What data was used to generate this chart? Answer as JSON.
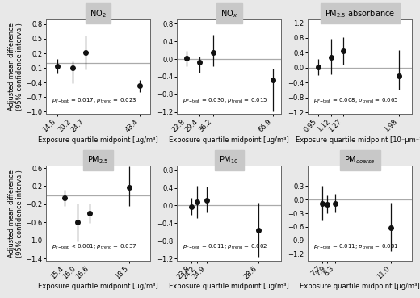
{
  "subplots": [
    {
      "title": "NO$_2$",
      "pF": "0.017",
      "ptrend": "0.023",
      "pF_lt": false,
      "x": [
        14.8,
        20.2,
        24.7,
        43.4
      ],
      "y": [
        -0.07,
        -0.1,
        0.21,
        -0.47
      ],
      "yerr_low": [
        0.15,
        0.32,
        0.35,
        0.12
      ],
      "yerr_high": [
        0.15,
        0.13,
        0.35,
        0.12
      ],
      "ylim": [
        -1.05,
        0.9
      ],
      "yticks": [
        -1.0,
        -0.7,
        -0.4,
        -0.1,
        0.2,
        0.5,
        0.8
      ],
      "xlim": [
        11.0,
        47.0
      ],
      "xtick_vals": [
        14.8,
        20.2,
        24.7,
        43.4
      ],
      "xtick_labels": [
        "14.8",
        "20.2",
        "24.7",
        "43.4"
      ],
      "xlabel": "Exposure quartile midpoint [μg/m³]",
      "hline": 0.0
    },
    {
      "title": "NO$_x$",
      "pF": "0.030",
      "ptrend": "0.015",
      "pF_lt": false,
      "x": [
        22.8,
        29.4,
        36.2,
        66.9
      ],
      "y": [
        0.01,
        -0.07,
        0.15,
        -0.47
      ],
      "yerr_low": [
        0.18,
        0.25,
        0.32,
        0.72
      ],
      "yerr_high": [
        0.18,
        0.12,
        0.4,
        0.25
      ],
      "ylim": [
        -1.25,
        0.9
      ],
      "yticks": [
        -1.2,
        -0.8,
        -0.4,
        0.0,
        0.4,
        0.8
      ],
      "xlim": [
        18.0,
        71.0
      ],
      "xtick_vals": [
        22.8,
        29.4,
        36.2,
        66.9
      ],
      "xtick_labels": [
        "22.8",
        "29.4",
        "36.2",
        "66.9"
      ],
      "xlabel": "Exposure quartile midpoint [μg/m³]",
      "hline": 0.0
    },
    {
      "title": "PM$_{2.5}$ absorbance",
      "pF": "0.008",
      "ptrend": "0.065",
      "pF_lt": false,
      "x": [
        0.95,
        1.12,
        1.27,
        1.98
      ],
      "y": [
        0.02,
        0.28,
        0.44,
        -0.22
      ],
      "yerr_low": [
        0.22,
        0.46,
        0.35,
        0.38
      ],
      "yerr_high": [
        0.22,
        0.5,
        0.38,
        0.68
      ],
      "ylim": [
        -1.25,
        1.3
      ],
      "yticks": [
        -1.2,
        -0.8,
        -0.4,
        0.0,
        0.4,
        0.8,
        1.2
      ],
      "xlim": [
        0.82,
        2.15
      ],
      "xtick_vals": [
        0.95,
        1.12,
        1.27,
        1.98
      ],
      "xtick_labels": [
        "0.95",
        "1.12",
        "1.27",
        "1.98"
      ],
      "xlabel": "Exposure quartile midpoint [10⁻µm⁻¹]",
      "hline": 0.0
    },
    {
      "title": "PM$_{2.5}$",
      "pF": "0.001",
      "ptrend": "0.037",
      "pF_lt": true,
      "x": [
        15.4,
        16.0,
        16.6,
        18.5
      ],
      "y": [
        -0.06,
        -0.6,
        -0.4,
        0.18
      ],
      "yerr_low": [
        0.18,
        0.42,
        0.22,
        0.42
      ],
      "yerr_high": [
        0.18,
        0.42,
        0.22,
        0.45
      ],
      "ylim": [
        -1.45,
        0.65
      ],
      "yticks": [
        -1.4,
        -1.0,
        -0.6,
        -0.2,
        0.2,
        0.6
      ],
      "xlim": [
        14.5,
        19.5
      ],
      "xtick_vals": [
        15.4,
        16.0,
        16.6,
        18.5
      ],
      "xtick_labels": [
        "15.4",
        "16.0",
        "16.6",
        "18.5"
      ],
      "xlabel": "Exposure quartile midpoint [μg/m³]",
      "hline": 0.0
    },
    {
      "title": "PM$_{10}$",
      "pF": "0.011",
      "ptrend": "0.002",
      "pF_lt": false,
      "x": [
        23.8,
        24.2,
        24.9,
        28.6
      ],
      "y": [
        -0.02,
        0.08,
        0.12,
        -0.55
      ],
      "yerr_low": [
        0.2,
        0.36,
        0.28,
        0.62
      ],
      "yerr_high": [
        0.2,
        0.36,
        0.3,
        0.62
      ],
      "ylim": [
        -1.25,
        0.9
      ],
      "yticks": [
        -1.2,
        -0.8,
        -0.4,
        0.0,
        0.4,
        0.8
      ],
      "xlim": [
        22.8,
        30.2
      ],
      "xtick_vals": [
        23.8,
        24.2,
        24.9,
        28.6
      ],
      "xtick_labels": [
        "23.8",
        "24.2",
        "24.9",
        "28.6"
      ],
      "xlabel": "Exposure quartile midpoint [μg/m³]",
      "hline": 0.0
    },
    {
      "title": "PM$_{coarse}$",
      "pF": "0.011",
      "ptrend": "0.001",
      "pF_lt": false,
      "x": [
        7.7,
        7.9,
        8.3,
        11.0
      ],
      "y": [
        -0.08,
        -0.1,
        -0.08,
        -0.62
      ],
      "yerr_low": [
        0.38,
        0.2,
        0.2,
        0.52
      ],
      "yerr_high": [
        0.38,
        0.2,
        0.2,
        0.55
      ],
      "ylim": [
        -1.35,
        0.75
      ],
      "yticks": [
        -1.2,
        -0.9,
        -0.6,
        -0.3,
        0.0,
        0.3
      ],
      "xlim": [
        7.0,
        12.0
      ],
      "xtick_vals": [
        7.7,
        7.9,
        8.3,
        11.0
      ],
      "xtick_labels": [
        "7.7",
        "7.9",
        "8.3",
        "11.0"
      ],
      "xlabel": "Exposure quartile midpoint [μg/m³]",
      "hline": 0.0
    }
  ],
  "ylabel": "Adjusted mean difference\n(95% confidence interval)",
  "title_bg": "#c8c8c8",
  "panel_bg": "#ffffff",
  "outer_bg": "#e8e8e8",
  "fig_bg": "#ffffff",
  "marker_color": "#111111",
  "line_color": "#aaaaaa",
  "font_size": 6.0
}
